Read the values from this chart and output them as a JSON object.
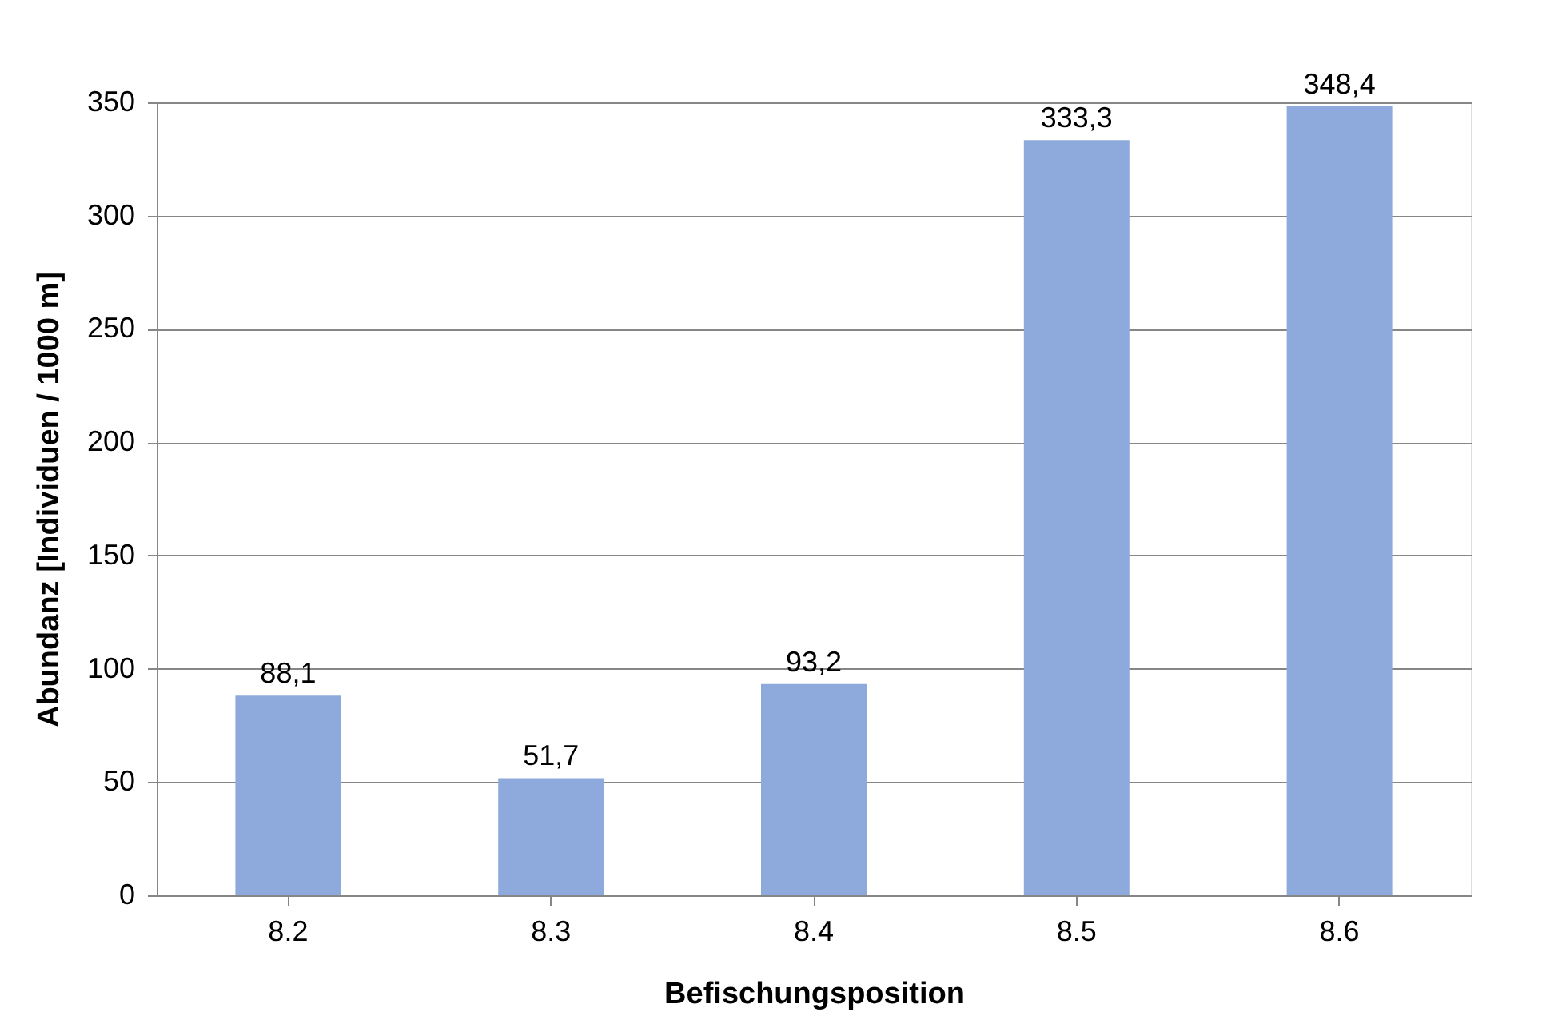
{
  "chart_data": {
    "type": "bar",
    "xlabel": "Befischungsposition",
    "ylabel": "Abundanz [Individuen / 1000 m]",
    "categories": [
      "8.2",
      "8.3",
      "8.4",
      "8.5",
      "8.6"
    ],
    "values": [
      88.1,
      51.7,
      93.2,
      333.3,
      348.4
    ],
    "value_labels": [
      "88,1",
      "51,7",
      "93,2",
      "333,3",
      "348,4"
    ],
    "color": "#8eaadc",
    "ylim": [
      0,
      350
    ],
    "yticks": [
      0,
      50,
      100,
      150,
      200,
      250,
      300,
      350
    ],
    "grid": "y"
  }
}
